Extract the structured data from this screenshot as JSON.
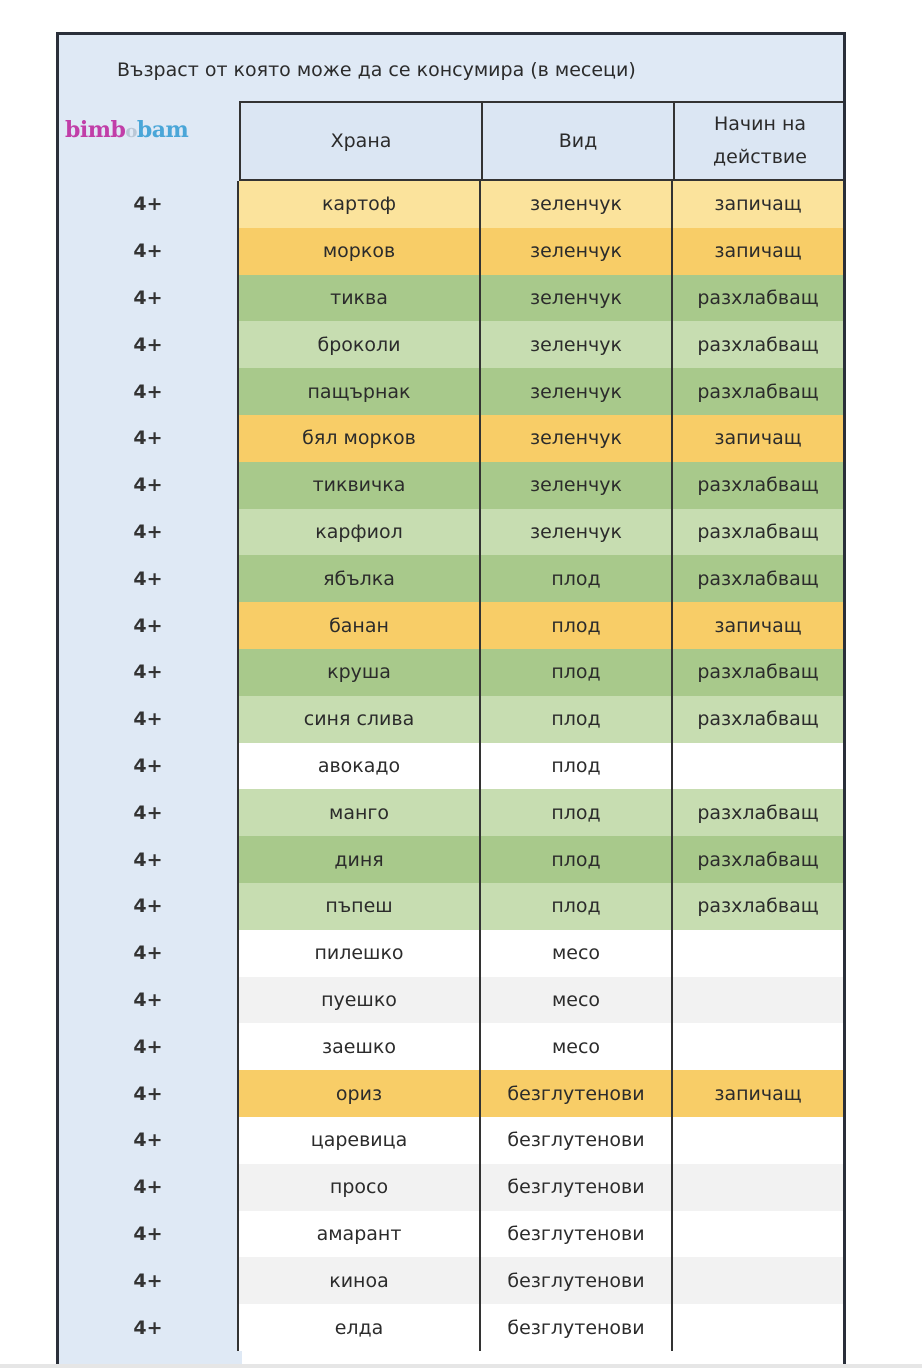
{
  "title": "Възраст от която може да се консумира  (в месеци)",
  "logo": {
    "part1": "bimb",
    "mid": "o",
    "part2": "bam",
    "colors": {
      "part1": "#c13ea8",
      "part2": "#4aa6d8"
    }
  },
  "headers": {
    "food": "Храна",
    "kind": "Вид",
    "action_line1": "Начин на",
    "action_line2": "действие"
  },
  "colors": {
    "yellow_light": "#fbe39c",
    "yellow": "#f8cd67",
    "green": "#a8c98b",
    "green_light": "#c7ddb1",
    "header_bg": "#dbe6f3"
  },
  "rows": [
    {
      "age": "4+",
      "food": "картоф",
      "kind": "зеленчук",
      "action": "запичащ",
      "color": "y1"
    },
    {
      "age": "4+",
      "food": "морков",
      "kind": "зеленчук",
      "action": "запичащ",
      "color": "y2"
    },
    {
      "age": "4+",
      "food": "тиква",
      "kind": "зеленчук",
      "action": "разхлабващ",
      "color": "g1"
    },
    {
      "age": "4+",
      "food": "броколи",
      "kind": "зеленчук",
      "action": "разхлабващ",
      "color": "g2"
    },
    {
      "age": "4+",
      "food": "пащърнак",
      "kind": "зеленчук",
      "action": "разхлабващ",
      "color": "g1"
    },
    {
      "age": "4+",
      "food": "бял морков",
      "kind": "зеленчук",
      "action": "запичащ",
      "color": "y2"
    },
    {
      "age": "4+",
      "food": "тиквичка",
      "kind": "зеленчук",
      "action": "разхлабващ",
      "color": "g1"
    },
    {
      "age": "4+",
      "food": "карфиол",
      "kind": "зеленчук",
      "action": "разхлабващ",
      "color": "g2"
    },
    {
      "age": "4+",
      "food": "ябълка",
      "kind": "плод",
      "action": "разхлабващ",
      "color": "g1"
    },
    {
      "age": "4+",
      "food": "банан",
      "kind": "плод",
      "action": "запичащ",
      "color": "y2"
    },
    {
      "age": "4+",
      "food": "круша",
      "kind": "плод",
      "action": "разхлабващ",
      "color": "g1"
    },
    {
      "age": "4+",
      "food": "синя слива",
      "kind": "плод",
      "action": "разхлабващ",
      "color": "g2"
    },
    {
      "age": "4+",
      "food": "авокадо",
      "kind": "плод",
      "action": "",
      "color": "w1"
    },
    {
      "age": "4+",
      "food": "манго",
      "kind": "плод",
      "action": "разхлабващ",
      "color": "g2"
    },
    {
      "age": "4+",
      "food": "диня",
      "kind": "плод",
      "action": "разхлабващ",
      "color": "g1"
    },
    {
      "age": "4+",
      "food": "пъпеш",
      "kind": "плод",
      "action": "разхлабващ",
      "color": "g2"
    },
    {
      "age": "4+",
      "food": "пилешко",
      "kind": "месо",
      "action": "",
      "color": "w1"
    },
    {
      "age": "4+",
      "food": "пуешко",
      "kind": "месо",
      "action": "",
      "color": "w2"
    },
    {
      "age": "4+",
      "food": "заешко",
      "kind": "месо",
      "action": "",
      "color": "w1"
    },
    {
      "age": "4+",
      "food": "ориз",
      "kind": "безглутенови",
      "action": "запичащ",
      "color": "y2"
    },
    {
      "age": "4+",
      "food": "царевица",
      "kind": "безглутенови",
      "action": "",
      "color": "w1"
    },
    {
      "age": "4+",
      "food": "просо",
      "kind": "безглутенови",
      "action": "",
      "color": "w2"
    },
    {
      "age": "4+",
      "food": "амарант",
      "kind": "безглутенови",
      "action": "",
      "color": "w1"
    },
    {
      "age": "4+",
      "food": "киноа",
      "kind": "безглутенови",
      "action": "",
      "color": "w2"
    },
    {
      "age": "4+",
      "food": "елда",
      "kind": "безглутенови",
      "action": "",
      "color": "w1"
    }
  ]
}
